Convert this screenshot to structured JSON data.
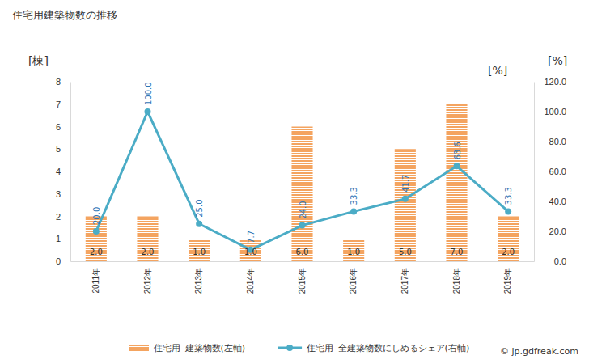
{
  "chart_data": {
    "type": "bar",
    "title": "住宅用建築物数の推移",
    "y_label": "[棟]",
    "y2_label": "[%]",
    "annotations": [
      "[%]",
      "© jp.gdfreak.com"
    ],
    "categories": [
      "2011年",
      "2012年",
      "2013年",
      "2014年",
      "2015年",
      "2016年",
      "2017年",
      "2018年",
      "2019年"
    ],
    "series": [
      {
        "name": "住宅用_建築物数(左軸)",
        "type": "bar",
        "color": "#f4a460",
        "values": [
          2,
          2,
          1,
          1,
          6,
          1,
          5,
          7,
          2
        ],
        "value_labels": [
          "2.0",
          "2.0",
          "1.0",
          "1.0",
          "6.0",
          "1.0",
          "5.0",
          "7.0",
          "2.0"
        ]
      },
      {
        "name": "住宅用_全建築物数にしめるシェア(右軸)",
        "type": "line",
        "axis": "y2",
        "color": "#4bacc6",
        "marker": "circle",
        "values": [
          20,
          100,
          25,
          7.7,
          24,
          33.3,
          41.7,
          63.6,
          33.3
        ],
        "value_labels": [
          "20.0",
          "100.0",
          "25.0",
          "7.7",
          "24.0",
          "33.3",
          "41.7",
          "63.6",
          "33.3"
        ]
      }
    ],
    "ylim": [
      0,
      8
    ],
    "yticks": [
      0,
      1,
      2,
      3,
      4,
      5,
      6,
      7,
      8
    ],
    "y2lim": [
      0,
      120
    ],
    "y2ticks": [
      {
        "value": 0,
        "label": "0.0"
      },
      {
        "value": 20,
        "label": "20.0"
      },
      {
        "value": 40,
        "label": "40.0"
      },
      {
        "value": 60,
        "label": "60.0"
      },
      {
        "value": 80,
        "label": "80.0"
      },
      {
        "value": 100,
        "label": "100.0"
      },
      {
        "value": 120,
        "label": "120.0"
      }
    ],
    "data_labels": true,
    "grid": false,
    "legend": "bottom"
  }
}
